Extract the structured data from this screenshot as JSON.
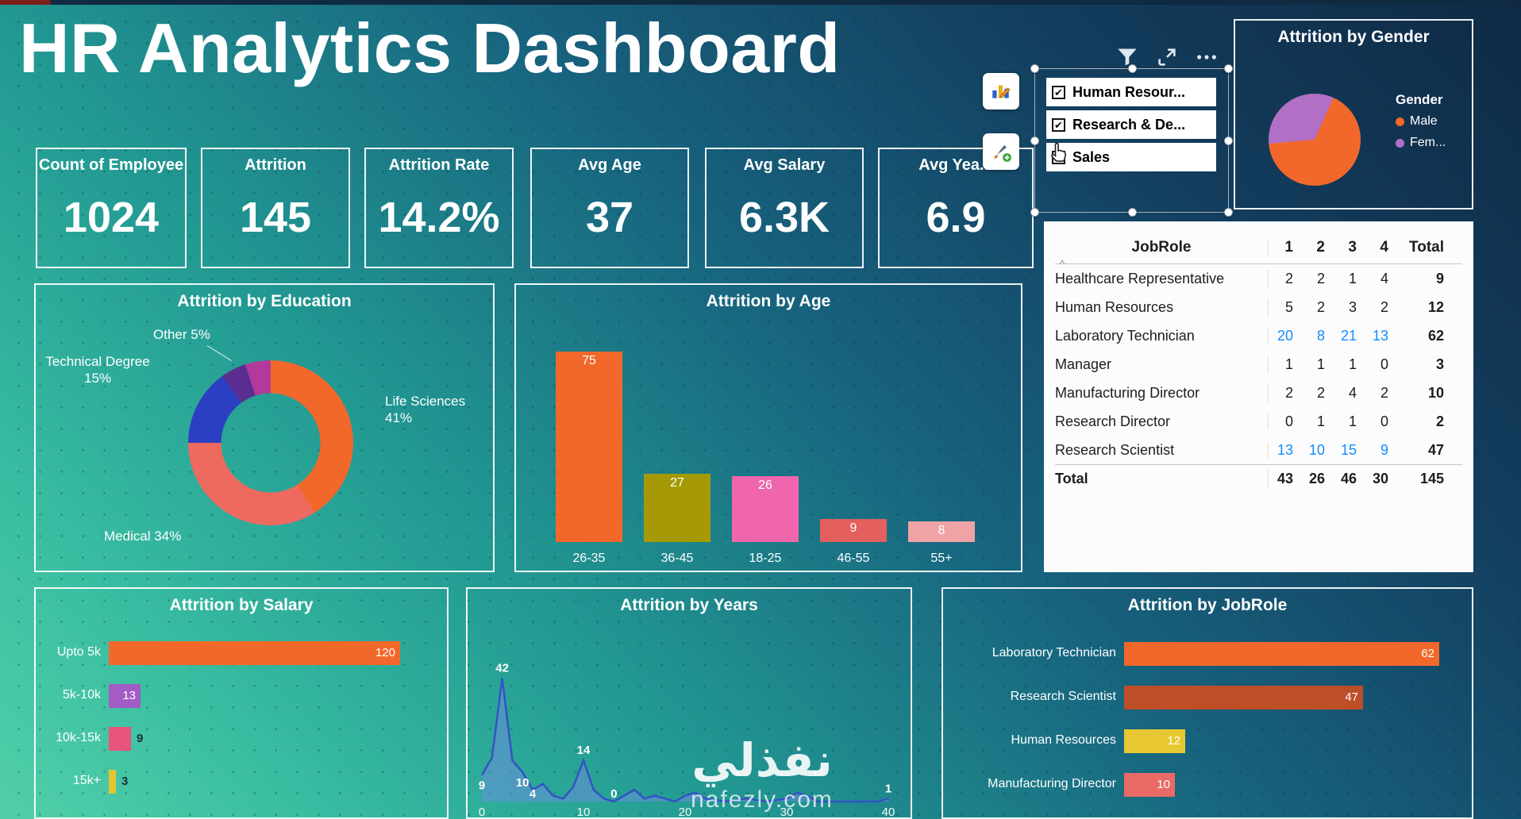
{
  "title": "HR Analytics Dashboard",
  "kpis": [
    {
      "label": "Count of Employee",
      "value": "1024"
    },
    {
      "label": "Attrition",
      "value": "145"
    },
    {
      "label": "Attrition Rate",
      "value": "14.2%"
    },
    {
      "label": "Avg Age",
      "value": "37"
    },
    {
      "label": "Avg Salary",
      "value": "6.3K"
    },
    {
      "label": "Avg Yea...",
      "value": "6.9"
    }
  ],
  "slicer": {
    "items": [
      {
        "label": "Human Resour...",
        "checked": true
      },
      {
        "label": "Research & De...",
        "checked": true
      },
      {
        "label": "Sales",
        "checked": false
      }
    ]
  },
  "icons": [
    "filter-icon",
    "focus-mode-icon",
    "more-options-icon",
    "edit-chart-icon",
    "format-painter-icon",
    "hand-cursor-icon"
  ],
  "watermark": {
    "text": "نفذلي",
    "site": "nafezly.com"
  },
  "chart_data": [
    {
      "id": "gender",
      "type": "pie",
      "title": "Attrition by Gender",
      "legend_title": "Gender",
      "legend_position": "right",
      "series": [
        {
          "label": "Male",
          "value": 67,
          "color": "#F2682A"
        },
        {
          "label": "Fem...",
          "value": 33,
          "color": "#B170C6"
        }
      ]
    },
    {
      "id": "education",
      "type": "pie",
      "subtype": "donut",
      "title": "Attrition by Education",
      "series": [
        {
          "label": "Life Sciences",
          "value": 41,
          "color": "#F2682A",
          "callout": "right"
        },
        {
          "label": "Medical",
          "value": 34,
          "color": "#EE6A5F",
          "callout": "bottom"
        },
        {
          "label": "Technical Degree",
          "value": 15,
          "color": "#2B3FC2",
          "callout": "left"
        },
        {
          "label": "",
          "value": 5,
          "color": "#5C2D91",
          "callout": ""
        },
        {
          "label": "Other",
          "value": 5,
          "color": "#B23A9C",
          "callout": "top"
        }
      ]
    },
    {
      "id": "age",
      "type": "bar",
      "title": "Attrition by Age",
      "categories": [
        "26-35",
        "36-45",
        "18-25",
        "46-55",
        "55+"
      ],
      "values": [
        75,
        27,
        26,
        9,
        8
      ],
      "colors": [
        "#F2682A",
        "#A59A06",
        "#EF66AD",
        "#E4605C",
        "#F0A3A5"
      ],
      "ylim": [
        0,
        80
      ]
    },
    {
      "id": "jobrole_table",
      "type": "table",
      "columns": [
        "JobRole",
        "1",
        "2",
        "3",
        "4",
        "Total"
      ],
      "sort_icon": "^",
      "highlight_color": "#118DFF",
      "rows": [
        {
          "name": "Healthcare Representative",
          "values": [
            2,
            2,
            1,
            4
          ],
          "total": 9,
          "highlight": false
        },
        {
          "name": "Human Resources",
          "values": [
            5,
            2,
            3,
            2
          ],
          "total": 12,
          "highlight": false
        },
        {
          "name": "Laboratory Technician",
          "values": [
            20,
            8,
            21,
            13
          ],
          "total": 62,
          "highlight": true
        },
        {
          "name": "Manager",
          "values": [
            1,
            1,
            1,
            0
          ],
          "total": 3,
          "highlight": false
        },
        {
          "name": "Manufacturing Director",
          "values": [
            2,
            2,
            4,
            2
          ],
          "total": 10,
          "highlight": false
        },
        {
          "name": "Research Director",
          "values": [
            0,
            1,
            1,
            0
          ],
          "total": 2,
          "highlight": false
        },
        {
          "name": "Research Scientist",
          "values": [
            13,
            10,
            15,
            9
          ],
          "total": 47,
          "highlight": true
        }
      ],
      "total_row": {
        "name": "Total",
        "values": [
          43,
          26,
          46,
          30
        ],
        "total": 145
      }
    },
    {
      "id": "salary",
      "type": "bar",
      "orientation": "horizontal",
      "title": "Attrition by Salary",
      "categories": [
        "Upto 5k",
        "5k-10k",
        "10k-15k",
        "15k+"
      ],
      "values": [
        120,
        13,
        9,
        3
      ],
      "colors": [
        "#F2682A",
        "#A35BC5",
        "#E8547C",
        "#E5C52E"
      ],
      "xlim": [
        0,
        130
      ]
    },
    {
      "id": "years",
      "type": "area",
      "title": "Attrition by Years",
      "x_ticks": [
        0,
        10,
        20,
        30,
        40
      ],
      "ylim": [
        0,
        45
      ],
      "line_color": "#3353C4",
      "fill_color": "rgba(110,140,225,0.5)",
      "points": [
        [
          0,
          9
        ],
        [
          1,
          15
        ],
        [
          2,
          42
        ],
        [
          3,
          14
        ],
        [
          4,
          10
        ],
        [
          5,
          4
        ],
        [
          6,
          6
        ],
        [
          7,
          2
        ],
        [
          8,
          1
        ],
        [
          9,
          5
        ],
        [
          10,
          14
        ],
        [
          11,
          4
        ],
        [
          12,
          1
        ],
        [
          13,
          0
        ],
        [
          14,
          2
        ],
        [
          15,
          4
        ],
        [
          16,
          1
        ],
        [
          17,
          2
        ],
        [
          18,
          1
        ],
        [
          19,
          0
        ],
        [
          20,
          2
        ],
        [
          21,
          3
        ],
        [
          22,
          1
        ],
        [
          24,
          0
        ],
        [
          26,
          1
        ],
        [
          28,
          0
        ],
        [
          30,
          1
        ],
        [
          31,
          3
        ],
        [
          32,
          2
        ],
        [
          33,
          0
        ],
        [
          35,
          0
        ],
        [
          37,
          0
        ],
        [
          39,
          0
        ],
        [
          40,
          1
        ]
      ],
      "labeled_points": [
        {
          "x": 2,
          "y": 42,
          "pos": "above"
        },
        {
          "x": 0,
          "y": 9,
          "pos": "below"
        },
        {
          "x": 4,
          "y": 10,
          "pos": "below"
        },
        {
          "x": 5,
          "y": 4,
          "pos": "below"
        },
        {
          "x": 10,
          "y": 14,
          "pos": "above"
        },
        {
          "x": 13,
          "y": 0,
          "pos": "below"
        },
        {
          "x": 40,
          "y": 1,
          "pos": "above"
        }
      ]
    },
    {
      "id": "jobrole_bar",
      "type": "bar",
      "orientation": "horizontal",
      "title": "Attrition by JobRole",
      "categories": [
        "Laboratory Technician",
        "Research Scientist",
        "Human Resources",
        "Manufacturing Director"
      ],
      "values": [
        62,
        47,
        12,
        10
      ],
      "colors": [
        "#F2682A",
        "#BE4E28",
        "#E8C832",
        "#E96A66"
      ],
      "xlim": [
        0,
        68
      ]
    }
  ]
}
